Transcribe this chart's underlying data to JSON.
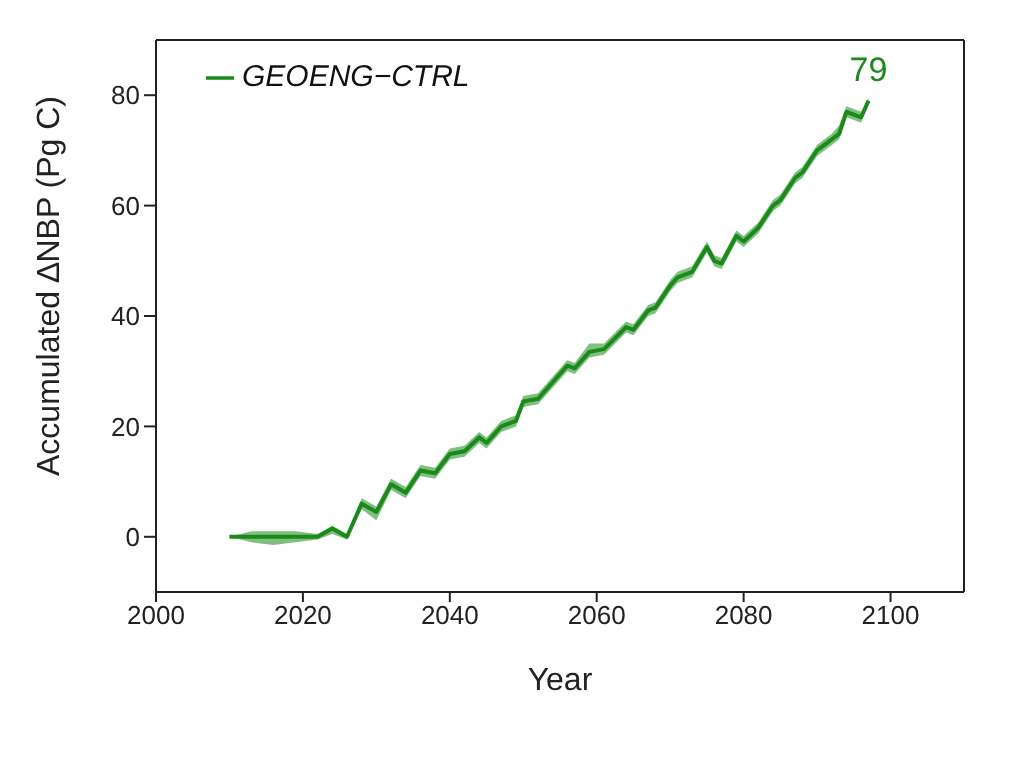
{
  "chart_data": {
    "type": "line",
    "xlabel": "Year",
    "ylabel": "Accumulated ∆NBP (Pg C)",
    "xlim": [
      2000,
      2110
    ],
    "xticks": [
      2000,
      2020,
      2040,
      2060,
      2080,
      2100
    ],
    "ylim": [
      -10,
      90
    ],
    "yticks": [
      0,
      20,
      40,
      60,
      80
    ],
    "legend": "top left",
    "marker": "none",
    "line_style": "solid",
    "annotations": [
      {
        "text": "79",
        "x": 2097,
        "y": 79
      }
    ],
    "series": [
      {
        "name": "GEOENG−CTRL",
        "color": "#1a8a1a",
        "x": [
          2010,
          2013,
          2016,
          2019,
          2022,
          2024,
          2026,
          2028,
          2030,
          2032,
          2034,
          2036,
          2038,
          2040,
          2042,
          2044,
          2045,
          2047,
          2049,
          2050,
          2052,
          2054,
          2056,
          2057,
          2059,
          2061,
          2064,
          2065,
          2067,
          2068,
          2070,
          2071,
          2073,
          2075,
          2076,
          2077,
          2079,
          2080,
          2082,
          2084,
          2085,
          2087,
          2088,
          2090,
          2091,
          2092,
          2093,
          2094,
          2096,
          2097
        ],
        "values": [
          0,
          0,
          0,
          0,
          0,
          1.5,
          0,
          6,
          4.5,
          9.5,
          8,
          12,
          11.5,
          15,
          15.5,
          18,
          17,
          20,
          21,
          24.5,
          25,
          28,
          31,
          30.5,
          33.5,
          34,
          38,
          37.5,
          41,
          41.5,
          45.5,
          47,
          48,
          52.5,
          50,
          49.5,
          54.5,
          53.5,
          56,
          60,
          61,
          65,
          66,
          70,
          71,
          72,
          73,
          77,
          76,
          79
        ],
        "lower": [
          0,
          -1,
          -1.5,
          -1,
          -0.5,
          0.5,
          -0.5,
          5,
          3,
          8.5,
          7,
          11,
          10.5,
          14,
          14.5,
          17,
          16,
          19,
          20,
          23.5,
          24,
          27,
          30,
          29.5,
          32.5,
          33,
          37,
          36.5,
          40,
          40.5,
          44.5,
          46,
          47,
          51.5,
          49,
          48.5,
          53.5,
          52.5,
          55,
          59,
          60,
          64,
          65,
          69,
          70,
          71,
          72,
          76,
          75,
          78.5
        ],
        "upper": [
          0,
          1,
          1,
          1,
          0.5,
          2,
          0.5,
          7,
          5.5,
          10.5,
          9,
          13,
          12.5,
          16,
          16.5,
          19,
          18,
          21,
          22,
          25.5,
          26,
          29,
          32,
          31.5,
          35,
          35,
          39,
          38.5,
          42,
          42.5,
          46.5,
          48,
          49,
          53.5,
          51,
          50.5,
          55.5,
          54.5,
          57,
          61,
          62,
          66,
          67,
          71,
          72,
          73,
          74.5,
          78,
          77,
          79.5
        ]
      }
    ]
  }
}
